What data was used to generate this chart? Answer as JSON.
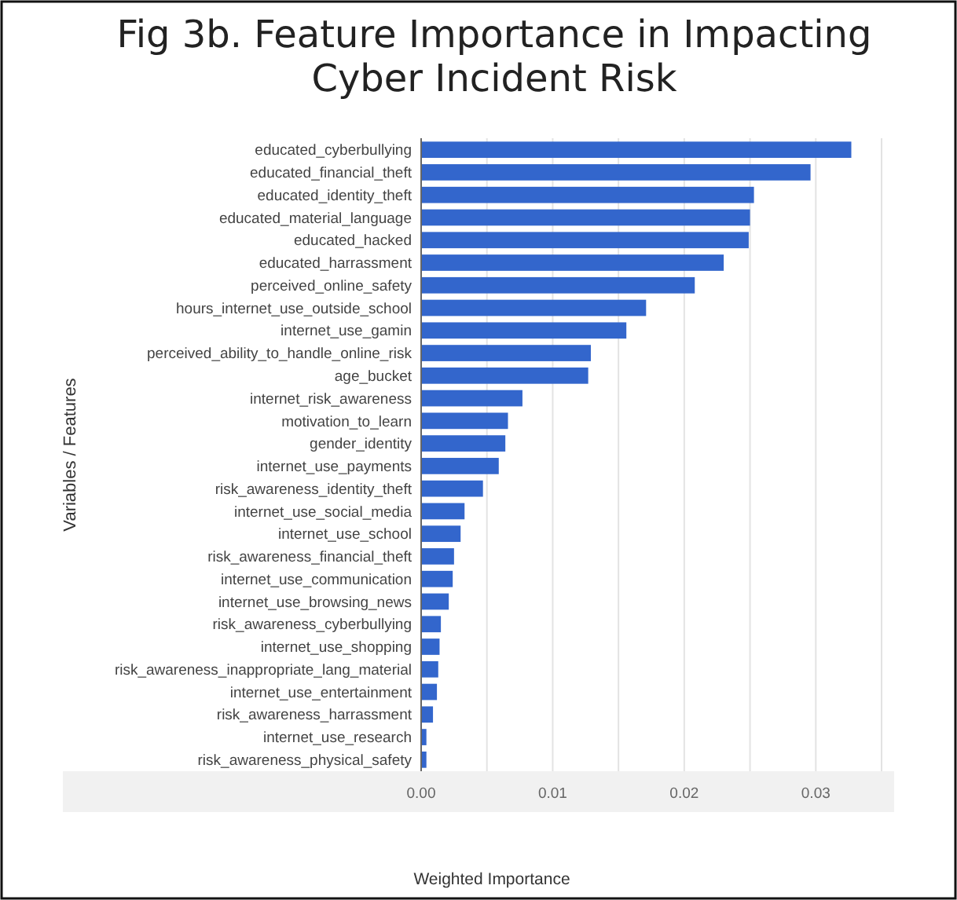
{
  "chart_data": {
    "type": "bar",
    "orientation": "horizontal",
    "title": "Fig 3b. Feature Importance in Impacting Cyber Incident Risk",
    "xlabel": "Weighted Importance",
    "ylabel": "Variables / Features",
    "categories": [
      "educated_cyberbullying",
      "educated_financial_theft",
      "educated_identity_theft",
      "educated_material_language",
      "educated_hacked",
      "educated_harrassment",
      "perceived_online_safety",
      "hours_internet_use_outside_school",
      "internet_use_gamin",
      "perceived_ability_to_handle_online_risk",
      "age_bucket",
      "internet_risk_awareness",
      "motivation_to_learn",
      "gender_identity",
      "internet_use_payments",
      "risk_awareness_identity_theft",
      "internet_use_social_media",
      "internet_use_school",
      "risk_awareness_financial_theft",
      "internet_use_communication",
      "internet_use_browsing_news",
      "risk_awareness_cyberbullying",
      "internet_use_shopping",
      "risk_awareness_inappropriate_lang_material",
      "internet_use_entertainment",
      "risk_awareness_harrassment",
      "internet_use_research",
      "risk_awareness_physical_safety"
    ],
    "values": [
      0.0327,
      0.0296,
      0.0253,
      0.025,
      0.0249,
      0.023,
      0.0208,
      0.0171,
      0.0156,
      0.0129,
      0.0127,
      0.0077,
      0.0066,
      0.0064,
      0.0059,
      0.0047,
      0.0033,
      0.003,
      0.0025,
      0.0024,
      0.0021,
      0.0015,
      0.0014,
      0.0013,
      0.0012,
      0.0009,
      0.0004,
      0.0004
    ],
    "color": "#3366cc",
    "xlim": [
      0,
      0.035
    ],
    "xticks": [
      {
        "value": 0,
        "label": "0.00"
      },
      {
        "value": 0.005,
        "label": null
      },
      {
        "value": 0.01,
        "label": "0.01"
      },
      {
        "value": 0.015,
        "label": null
      },
      {
        "value": 0.02,
        "label": "0.02"
      },
      {
        "value": 0.025,
        "label": null
      },
      {
        "value": 0.03,
        "label": "0.03"
      },
      {
        "value": 0.035,
        "label": null
      }
    ],
    "grid": "x"
  }
}
